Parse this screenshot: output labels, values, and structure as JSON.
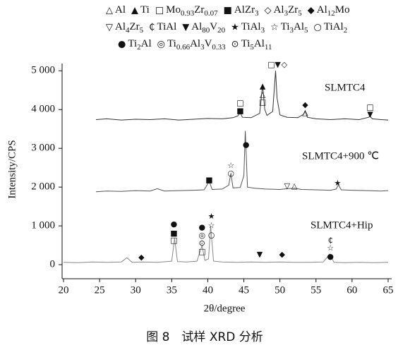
{
  "chart_data": {
    "type": "line",
    "caption": "图 8　试样 XRD 分析",
    "x_label": "2θ/degree",
    "y_label": "Intensity/CPS",
    "xlim": [
      20,
      65
    ],
    "xticks": [
      20,
      25,
      30,
      35,
      40,
      45,
      50,
      55,
      60,
      65
    ],
    "ylim": [
      -350,
      5200
    ],
    "yticks": [
      0,
      {
        "value": 1000,
        "label": "1 000"
      },
      {
        "value": 2000,
        "label": "2 000"
      },
      {
        "value": 3000,
        "label": "3 000"
      },
      {
        "value": 4000,
        "label": "4 000"
      },
      {
        "value": 5000,
        "label": "5 000"
      }
    ],
    "legend": [
      {
        "symbol": "△",
        "name": "Al"
      },
      {
        "symbol": "▲",
        "name": "Ti"
      },
      {
        "symbol": "□",
        "name": "Mo0.93Zr0.07"
      },
      {
        "symbol": "■",
        "name": "AlZr3"
      },
      {
        "symbol": "◇",
        "name": "Al3Zr5"
      },
      {
        "symbol": "◆",
        "name": "Al12Mo"
      },
      {
        "symbol": "▽",
        "name": "Al4Zr5"
      },
      {
        "symbol": "₵",
        "name": "TiAl"
      },
      {
        "symbol": "▼",
        "name": "Al80V20"
      },
      {
        "symbol": "★",
        "name": "TiAl3"
      },
      {
        "symbol": "☆",
        "name": "Ti3Al5"
      },
      {
        "symbol": "○",
        "name": "TiAl2"
      },
      {
        "symbol": "●",
        "name": "Ti2Al"
      },
      {
        "symbol": "◎",
        "name": "Ti0.66Al3V0.33"
      },
      {
        "symbol": "⊙",
        "name": "Ti5Al11"
      }
    ],
    "series": [
      {
        "name": "SLMTC4",
        "color": "#333333",
        "x": [
          24.5,
          26,
          28,
          30,
          32,
          34,
          36,
          38,
          40,
          42,
          43.5,
          44.2,
          44.5,
          44.8,
          46,
          47.2,
          47.6,
          47.9,
          48.2,
          49.0,
          49.4,
          49.6,
          50.0,
          51,
          52.5,
          53.3,
          53.5,
          53.8,
          55,
          57,
          59,
          61,
          62.3,
          62.5,
          62.8,
          64,
          65
        ],
        "values": [
          3740,
          3760,
          3730,
          3750,
          3740,
          3760,
          3730,
          3750,
          3770,
          3760,
          3790,
          3840,
          3920,
          3800,
          3790,
          3900,
          4640,
          4000,
          3850,
          3950,
          5000,
          4300,
          3860,
          3800,
          3790,
          3880,
          3960,
          3800,
          3760,
          3740,
          3760,
          3740,
          3800,
          3830,
          3760,
          3740,
          3730
        ]
      },
      {
        "name": "SLMTC4+900 ℃",
        "color": "#555555",
        "x": [
          24.5,
          26,
          28,
          30,
          32,
          33,
          34,
          36,
          38,
          39.5,
          40.2,
          40.6,
          42,
          42.9,
          43.2,
          43.5,
          44.5,
          45.0,
          45.2,
          45.5,
          46.5,
          48,
          50,
          51,
          52,
          53,
          55,
          57,
          57.8,
          58.1,
          58.5,
          60,
          62,
          64,
          65
        ],
        "values": [
          1880,
          1900,
          1890,
          1910,
          1900,
          1960,
          1900,
          1910,
          1920,
          1930,
          2150,
          1940,
          1950,
          2050,
          2360,
          1980,
          1990,
          2300,
          3450,
          2000,
          1970,
          1950,
          1940,
          1960,
          1970,
          1940,
          1930,
          1920,
          1950,
          2060,
          1930,
          1920,
          1910,
          1900,
          1910
        ]
      },
      {
        "name": "SLMTC4+Hip",
        "color": "#888888",
        "x": [
          20,
          22,
          24,
          26,
          28,
          28.8,
          29.5,
          31,
          33,
          35,
          35.4,
          35.8,
          37,
          38.5,
          39.2,
          39.6,
          40.1,
          40.4,
          40.8,
          42,
          44,
          46,
          48,
          50,
          52,
          54,
          56,
          56.9,
          57.5,
          59,
          61,
          63,
          65
        ],
        "values": [
          60,
          50,
          70,
          60,
          70,
          180,
          60,
          70,
          60,
          90,
          680,
          80,
          70,
          90,
          490,
          110,
          150,
          1000,
          90,
          70,
          60,
          70,
          60,
          70,
          60,
          60,
          70,
          270,
          60,
          50,
          60,
          50,
          60
        ]
      }
    ],
    "peak_markers": [
      {
        "x": 44.5,
        "y": 4160,
        "symbol": "□"
      },
      {
        "x": 44.5,
        "y": 3960,
        "symbol": "■"
      },
      {
        "x": 47.6,
        "y": 4600,
        "symbol": "▲"
      },
      {
        "x": 47.6,
        "y": 4380,
        "symbol": "△"
      },
      {
        "x": 47.6,
        "y": 4180,
        "symbol": "□"
      },
      {
        "x": 48.8,
        "y": 5150,
        "symbol": "□"
      },
      {
        "x": 49.7,
        "y": 5150,
        "symbol": "▼"
      },
      {
        "x": 50.6,
        "y": 5150,
        "symbol": "◇"
      },
      {
        "x": 53.5,
        "y": 4110,
        "symbol": "◆"
      },
      {
        "x": 53.5,
        "y": 3910,
        "symbol": "△"
      },
      {
        "x": 62.5,
        "y": 4050,
        "symbol": "□"
      },
      {
        "x": 62.5,
        "y": 3870,
        "symbol": "▼"
      },
      {
        "x": 40.2,
        "y": 2180,
        "symbol": "■"
      },
      {
        "x": 43.2,
        "y": 2545,
        "symbol": "☆"
      },
      {
        "x": 43.2,
        "y": 2345,
        "symbol": "○"
      },
      {
        "x": 45.3,
        "y": 3090,
        "symbol": "●"
      },
      {
        "x": 51.0,
        "y": 2020,
        "symbol": "▽"
      },
      {
        "x": 52.0,
        "y": 2020,
        "symbol": "△"
      },
      {
        "x": 58.0,
        "y": 2090,
        "symbol": "★"
      },
      {
        "x": 30.8,
        "y": 180,
        "symbol": "◆"
      },
      {
        "x": 35.3,
        "y": 1040,
        "symbol": "●"
      },
      {
        "x": 35.3,
        "y": 800,
        "symbol": "■"
      },
      {
        "x": 35.3,
        "y": 620,
        "symbol": "□"
      },
      {
        "x": 39.2,
        "y": 960,
        "symbol": "●"
      },
      {
        "x": 39.2,
        "y": 750,
        "symbol": "◎"
      },
      {
        "x": 39.2,
        "y": 545,
        "symbol": "⊙"
      },
      {
        "x": 39.2,
        "y": 330,
        "symbol": "□"
      },
      {
        "x": 40.5,
        "y": 1240,
        "symbol": "★"
      },
      {
        "x": 40.5,
        "y": 1000,
        "symbol": "☆"
      },
      {
        "x": 40.5,
        "y": 760,
        "symbol": "○"
      },
      {
        "x": 47.2,
        "y": 255,
        "symbol": "▼"
      },
      {
        "x": 50.3,
        "y": 255,
        "symbol": "◆"
      },
      {
        "x": 57.0,
        "y": 620,
        "symbol": "₵"
      },
      {
        "x": 57.0,
        "y": 420,
        "symbol": "☆"
      },
      {
        "x": 57.0,
        "y": 200,
        "symbol": "●"
      }
    ]
  }
}
